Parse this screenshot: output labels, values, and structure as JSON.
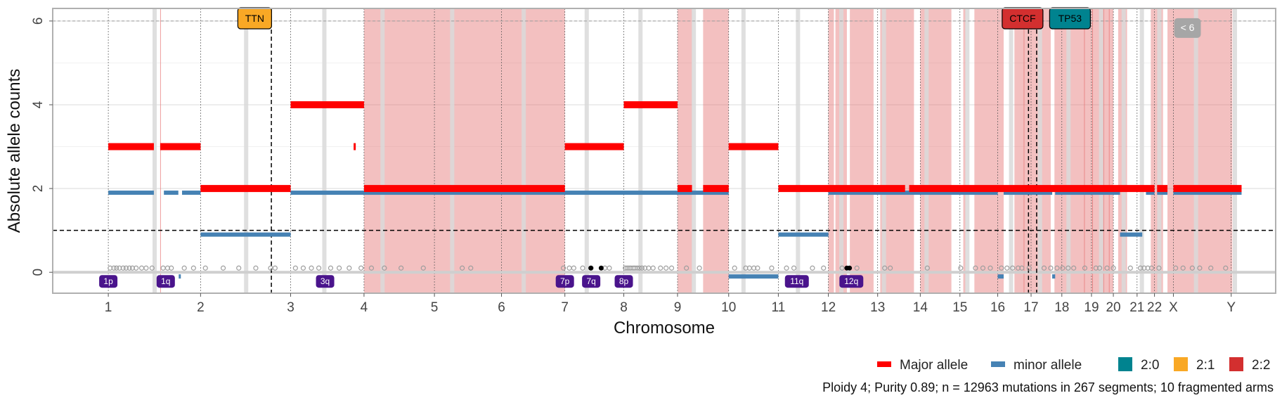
{
  "chart_data": {
    "type": "scatter",
    "ylabel": "Absolute allele counts",
    "xlabel": "Chromosome",
    "ylim": [
      -0.5,
      6.3
    ],
    "y_ticks": [
      "0",
      "2",
      "4",
      "6"
    ],
    "grid": true,
    "chromosomes": [
      {
        "label": "1",
        "start": 0,
        "end": 249
      },
      {
        "label": "2",
        "start": 249,
        "end": 492
      },
      {
        "label": "3",
        "start": 492,
        "end": 690
      },
      {
        "label": "4",
        "start": 690,
        "end": 880
      },
      {
        "label": "5",
        "start": 880,
        "end": 1061
      },
      {
        "label": "6",
        "start": 1061,
        "end": 1232
      },
      {
        "label": "7",
        "start": 1232,
        "end": 1391
      },
      {
        "label": "8",
        "start": 1391,
        "end": 1536
      },
      {
        "label": "9",
        "start": 1536,
        "end": 1674
      },
      {
        "label": "10",
        "start": 1674,
        "end": 1808
      },
      {
        "label": "11",
        "start": 1808,
        "end": 1943
      },
      {
        "label": "12",
        "start": 1943,
        "end": 2076
      },
      {
        "label": "13",
        "start": 2076,
        "end": 2191
      },
      {
        "label": "14",
        "start": 2191,
        "end": 2298
      },
      {
        "label": "15",
        "start": 2298,
        "end": 2400
      },
      {
        "label": "16",
        "start": 2400,
        "end": 2490
      },
      {
        "label": "17",
        "start": 2490,
        "end": 2573
      },
      {
        "label": "18",
        "start": 2573,
        "end": 2653
      },
      {
        "label": "19",
        "start": 2653,
        "end": 2712
      },
      {
        "label": "20",
        "start": 2712,
        "end": 2776
      },
      {
        "label": "21",
        "start": 2776,
        "end": 2823
      },
      {
        "label": "22",
        "start": 2823,
        "end": 2874
      },
      {
        "label": "X",
        "start": 2874,
        "end": 3030
      },
      {
        "label": "Y",
        "start": 3030,
        "end": 3087
      }
    ],
    "xlim": [
      -150,
      3150
    ],
    "centromeres": [
      125,
      372,
      583,
      740,
      928,
      1121,
      1291,
      1436,
      1580,
      1714,
      1861,
      1978,
      2093,
      2208,
      2318,
      2436,
      2514,
      2591,
      2679,
      2740,
      2789,
      2836,
      2935,
      3040
    ],
    "red_regions": [
      [
        690,
        1232
      ],
      [
        1536,
        1575
      ],
      [
        1605,
        1674
      ],
      [
        1943,
        1958
      ],
      [
        1962,
        1993
      ],
      [
        2001,
        2065
      ],
      [
        2083,
        2174
      ],
      [
        2191,
        2275
      ],
      [
        2307,
        2313
      ],
      [
        2337,
        2416
      ],
      [
        2445,
        2543
      ],
      [
        2553,
        2712
      ],
      [
        2725,
        2749
      ],
      [
        2813,
        2846
      ],
      [
        2858,
        3033
      ]
    ],
    "red_thin_lines": [
      [
        140,
        141
      ],
      [
        2470,
        2471
      ],
      [
        2633,
        2634
      ],
      [
        2655,
        2656
      ],
      [
        2685,
        2686
      ],
      [
        2700,
        2701
      ]
    ],
    "major_segments": [
      {
        "start": 0,
        "end": 123,
        "value": 3
      },
      {
        "start": 140,
        "end": 249,
        "value": 3
      },
      {
        "start": 249,
        "end": 492,
        "value": 2
      },
      {
        "start": 492,
        "end": 690,
        "value": 4
      },
      {
        "start": 662,
        "end": 665,
        "value": 3
      },
      {
        "start": 690,
        "end": 1232,
        "value": 2
      },
      {
        "start": 1232,
        "end": 1391,
        "value": 3
      },
      {
        "start": 1391,
        "end": 1536,
        "value": 4
      },
      {
        "start": 1536,
        "end": 1575,
        "value": 2
      },
      {
        "start": 1605,
        "end": 1674,
        "value": 2
      },
      {
        "start": 1674,
        "end": 1808,
        "value": 3
      },
      {
        "start": 1808,
        "end": 2150,
        "value": 2
      },
      {
        "start": 2161,
        "end": 2823,
        "value": 2
      },
      {
        "start": 2830,
        "end": 2858,
        "value": 2
      },
      {
        "start": 2874,
        "end": 3058,
        "value": 2
      }
    ],
    "minor_segments": [
      {
        "start": 0,
        "end": 123,
        "value": 1.9
      },
      {
        "start": 150,
        "end": 189,
        "value": 1.9
      },
      {
        "start": 199,
        "end": 249,
        "value": 1.9
      },
      {
        "start": 190,
        "end": 194,
        "value": -0.1
      },
      {
        "start": 249,
        "end": 492,
        "value": 0.9
      },
      {
        "start": 492,
        "end": 1674,
        "value": 1.9
      },
      {
        "start": 1674,
        "end": 1808,
        "value": -0.1
      },
      {
        "start": 1808,
        "end": 1943,
        "value": 0.9
      },
      {
        "start": 1943,
        "end": 2400,
        "value": 1.9
      },
      {
        "start": 2400,
        "end": 2416,
        "value": -0.1
      },
      {
        "start": 2416,
        "end": 2547,
        "value": 1.9
      },
      {
        "start": 2547,
        "end": 2555,
        "value": -0.1
      },
      {
        "start": 2555,
        "end": 2730,
        "value": 1.9
      },
      {
        "start": 2730,
        "end": 2790,
        "value": 0.9
      },
      {
        "start": 2800,
        "end": 2823,
        "value": 1.9
      },
      {
        "start": 2830,
        "end": 2858,
        "value": 1.9
      },
      {
        "start": 2874,
        "end": 3058,
        "value": 1.9
      }
    ],
    "mutation_points_grey": [
      5,
      15,
      22,
      30,
      40,
      48,
      57,
      65,
      75,
      90,
      102,
      118,
      148,
      160,
      170,
      205,
      230,
      262,
      310,
      352,
      398,
      438,
      450,
      505,
      526,
      548,
      568,
      600,
      623,
      650,
      682,
      710,
      745,
      790,
      850,
      955,
      978,
      1228,
      1244,
      1256,
      1280,
      1303,
      1340,
      1352,
      1395,
      1400,
      1405,
      1410,
      1416,
      1421,
      1427,
      1433,
      1440,
      1448,
      1458,
      1470,
      1490,
      1505,
      1520,
      1560,
      1595,
      1690,
      1720,
      1730,
      1742,
      1752,
      1790,
      1830,
      1850,
      1900,
      1930,
      1980,
      2020,
      2095,
      2110,
      2210,
      2300,
      2340,
      2360,
      2380,
      2410,
      2425,
      2440,
      2455,
      2465,
      2485,
      2525,
      2543,
      2560,
      2575,
      2590,
      2605,
      2635,
      2665,
      2675,
      2695,
      2712,
      2758,
      2785,
      2795,
      2805,
      2815,
      2835,
      2880,
      2900,
      2925,
      2945,
      2975,
      3015
    ],
    "mutation_points_black": [
      1302,
      1330,
      1993,
      2000
    ],
    "dashed_hline": 1,
    "vlines_dashed": [
      440,
      2483,
      2505
    ],
    "gene_labels": [
      {
        "name": "TTN",
        "pos": 395,
        "color": "#F9A825"
      },
      {
        "name": "CTCF",
        "pos": 2467,
        "color": "#D32F2F"
      },
      {
        "name": "TP53",
        "pos": 2595,
        "color": "#00838F"
      }
    ],
    "grey_tag": {
      "text": "< 6",
      "pos": 2912
    },
    "arm_labels": [
      {
        "text": "1p",
        "pos": 0
      },
      {
        "text": "1q",
        "pos": 155
      },
      {
        "text": "3q",
        "pos": 585
      },
      {
        "text": "7p",
        "pos": 1232
      },
      {
        "text": "7q",
        "pos": 1303
      },
      {
        "text": "8p",
        "pos": 1391
      },
      {
        "text": "11q",
        "pos": 1858
      },
      {
        "text": "12q",
        "pos": 2005
      }
    ]
  },
  "legend": {
    "major_label": "Major allele",
    "minor_label": "minor allele",
    "major_color": "#FF0000",
    "minor_color": "#4682B4",
    "states": [
      {
        "label": "2:0",
        "color": "#00838F"
      },
      {
        "label": "2:1",
        "color": "#F9A825"
      },
      {
        "label": "2:2",
        "color": "#D32F2F"
      }
    ]
  },
  "caption": "Ploidy 4; Purity  0.89; n = 12963 mutations in 267 segments; 10 fragmented arms"
}
